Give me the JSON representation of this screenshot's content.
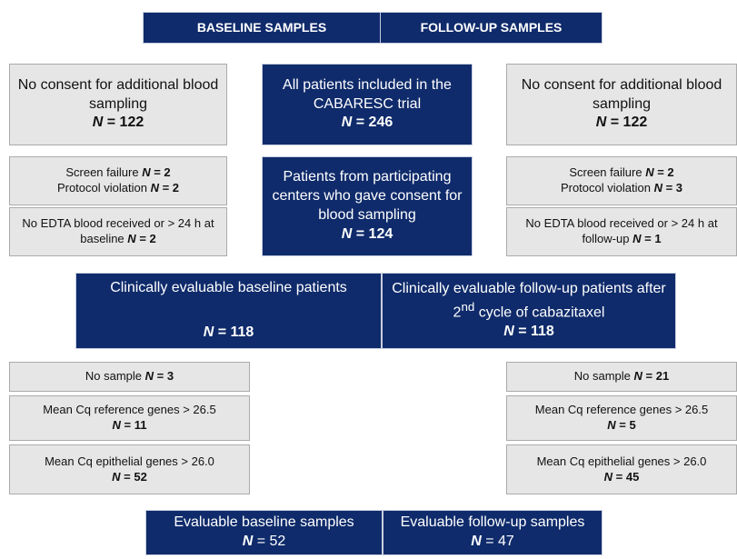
{
  "header": {
    "baseline": "BASELINE SAMPLES",
    "followup": "FOLLOW-UP SAMPLES"
  },
  "row1": {
    "left": {
      "text": "No consent for additional blood sampling",
      "n_symbol": "N",
      "n_value": "= 122"
    },
    "center": {
      "text": "All patients included in the CABARESC trial",
      "n_symbol": "N",
      "n_value": "= 246"
    },
    "right": {
      "text": "No consent for additional blood sampling",
      "n_symbol": "N",
      "n_value": "= 122"
    }
  },
  "row2": {
    "left": {
      "items": [
        {
          "label": "Screen failure",
          "n_symbol": "N",
          "n_value": "= 2"
        },
        {
          "label": "Protocol violation",
          "n_symbol": "N",
          "n_value": "= 2"
        }
      ],
      "edta": {
        "label": "No EDTA blood received or > 24 h at baseline",
        "n_symbol": "N",
        "n_value": "= 2"
      }
    },
    "center": {
      "text": "Patients from participating centers who gave consent for blood sampling",
      "n_symbol": "N",
      "n_value": "= 124"
    },
    "right": {
      "items": [
        {
          "label": "Screen failure",
          "n_symbol": "N",
          "n_value": "= 2"
        },
        {
          "label": "Protocol violation",
          "n_symbol": "N",
          "n_value": "= 3"
        }
      ],
      "edta": {
        "label": "No EDTA blood received or > 24 h at follow-up",
        "n_symbol": "N",
        "n_value": "= 1"
      }
    }
  },
  "row3": {
    "left": {
      "text": "Clinically evaluable baseline patients",
      "n_symbol": "N",
      "n_value": "= 118"
    },
    "right": {
      "text": "Clinically evaluable follow-up patients after 2",
      "sup": "nd",
      "text_after": "cycle of cabazitaxel",
      "n_symbol": "N",
      "n_value": "= 118"
    }
  },
  "row4": {
    "left": [
      {
        "label": "No sample",
        "n_symbol": "N",
        "n_value": "= 3"
      },
      {
        "label": "Mean Cq reference genes > 26.5",
        "n_symbol": "N",
        "n_value": "= 11"
      },
      {
        "label": "Mean Cq epithelial genes > 26.0",
        "n_symbol": "N",
        "n_value": "= 52"
      }
    ],
    "right": [
      {
        "label": "No sample",
        "n_symbol": "N",
        "n_value": "= 21"
      },
      {
        "label": "Mean Cq reference genes > 26.5",
        "n_symbol": "N",
        "n_value": "= 5"
      },
      {
        "label": "Mean Cq epithelial genes > 26.0",
        "n_symbol": "N",
        "n_value": "= 45"
      }
    ]
  },
  "row5": {
    "left": {
      "text": "Evaluable baseline samples",
      "n_symbol": "N",
      "n_value": "= 52"
    },
    "right": {
      "text": "Evaluable follow-up samples",
      "n_symbol": "N",
      "n_value": "= 47"
    }
  }
}
